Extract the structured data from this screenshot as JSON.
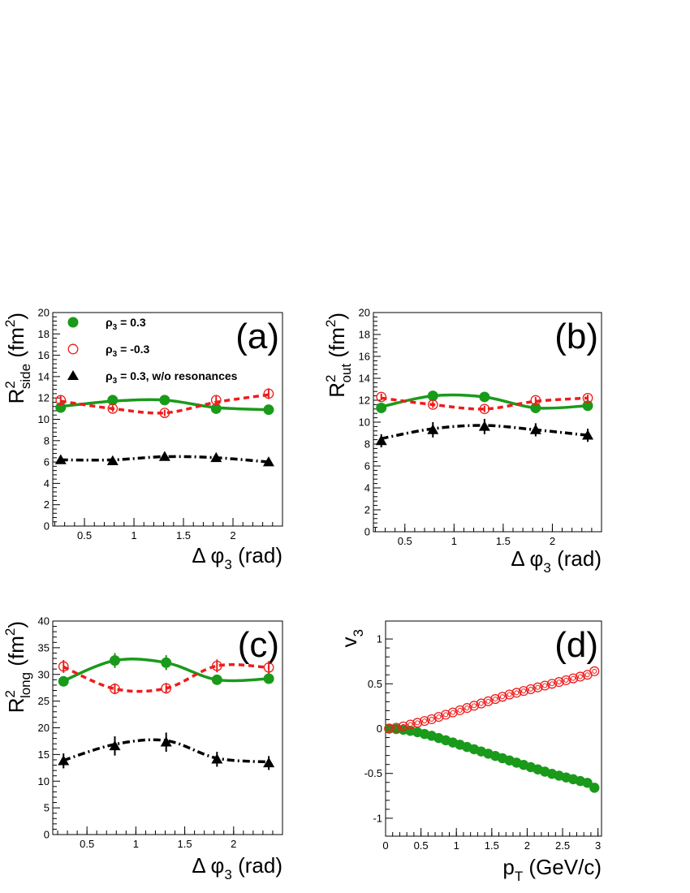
{
  "colors": {
    "series1": "#1a9a1a",
    "series2": "#ee1c1c",
    "series3": "#000000"
  },
  "legend": {
    "sym": "ρ",
    "sub": "3",
    "items": [
      {
        "rest": " = 0.3",
        "marker": "filled-circle",
        "color": "#1a9a1a"
      },
      {
        "rest": " = -0.3",
        "marker": "open-circle",
        "color": "#ee1c1c"
      },
      {
        "rest": " = 0.3, w/o resonances",
        "marker": "filled-triangle",
        "color": "#000000"
      }
    ]
  },
  "chart_data": [
    {
      "panel": "(a)",
      "type": "scatter",
      "xlim": [
        0.18,
        2.5
      ],
      "ylim": [
        0,
        20
      ],
      "xticks": [
        "0.5",
        "1",
        "1.5",
        "2"
      ],
      "yticks": [
        "0",
        "2",
        "4",
        "6",
        "8",
        "10",
        "12",
        "14",
        "16",
        "18",
        "20"
      ],
      "xlabel": {
        "main": "Δ φ",
        "sub": "3",
        "tail": " (rad)"
      },
      "ylabel": {
        "main": "R",
        "sup": "2",
        "sub": "side",
        "tail": " (fm",
        "tailsup": "2",
        "close": ")"
      },
      "series": [
        {
          "x": [
            0.26,
            0.785,
            1.31,
            1.83,
            2.36
          ],
          "y": [
            11.1,
            11.8,
            11.8,
            11.0,
            10.9
          ],
          "err": [
            0.3,
            0.3,
            0.3,
            0.3,
            0.3
          ],
          "curve": [
            11.2,
            11.7,
            11.8,
            11.1,
            10.9
          ]
        },
        {
          "x": [
            0.26,
            0.785,
            1.31,
            1.83,
            2.36
          ],
          "y": [
            11.8,
            11.0,
            10.6,
            11.8,
            12.4
          ],
          "err": [
            0.4,
            0.3,
            0.3,
            0.4,
            0.5
          ],
          "curve": [
            11.7,
            11.0,
            10.6,
            11.6,
            12.3
          ]
        },
        {
          "x": [
            0.26,
            0.785,
            1.31,
            1.83,
            2.36
          ],
          "y": [
            6.2,
            6.1,
            6.5,
            6.4,
            6.0
          ],
          "err": [
            0.2,
            0.2,
            0.2,
            0.2,
            0.2
          ],
          "curve": [
            6.2,
            6.2,
            6.5,
            6.4,
            6.0
          ]
        }
      ]
    },
    {
      "panel": "(b)",
      "type": "scatter",
      "xlim": [
        0.18,
        2.5
      ],
      "ylim": [
        0,
        20
      ],
      "xticks": [
        "0.5",
        "1",
        "1.5",
        "2"
      ],
      "yticks": [
        "0",
        "2",
        "4",
        "6",
        "8",
        "10",
        "12",
        "14",
        "16",
        "18",
        "20"
      ],
      "xlabel": {
        "main": "Δ φ",
        "sub": "3",
        "tail": " (rad)"
      },
      "ylabel": {
        "main": "R",
        "sup": "2",
        "sub": "out",
        "tail": " (fm",
        "tailsup": "2",
        "close": ")"
      },
      "series": [
        {
          "x": [
            0.26,
            0.785,
            1.31,
            1.83,
            2.36
          ],
          "y": [
            11.3,
            12.4,
            12.3,
            11.3,
            11.5
          ],
          "err": [
            0.3,
            0.3,
            0.3,
            0.3,
            0.3
          ],
          "curve": [
            11.4,
            12.4,
            12.3,
            11.3,
            11.5
          ]
        },
        {
          "x": [
            0.26,
            0.785,
            1.31,
            1.83,
            2.36
          ],
          "y": [
            12.3,
            11.6,
            11.2,
            12.0,
            12.2
          ],
          "err": [
            0.3,
            0.3,
            0.3,
            0.3,
            0.3
          ],
          "curve": [
            12.2,
            11.6,
            11.2,
            11.9,
            12.2
          ]
        },
        {
          "x": [
            0.26,
            0.785,
            1.31,
            1.83,
            2.36
          ],
          "y": [
            8.3,
            9.3,
            9.6,
            9.3,
            8.8
          ],
          "err": [
            0.6,
            0.7,
            0.7,
            0.6,
            0.6
          ],
          "curve": [
            8.5,
            9.4,
            9.7,
            9.3,
            8.8
          ]
        }
      ]
    },
    {
      "panel": "(c)",
      "type": "scatter",
      "xlim": [
        0.15,
        2.5
      ],
      "ylim": [
        0,
        40
      ],
      "xticks": [
        "0.5",
        "1",
        "1.5",
        "2"
      ],
      "yticks": [
        "0",
        "5",
        "10",
        "15",
        "20",
        "25",
        "30",
        "35",
        "40"
      ],
      "xlabel": {
        "main": "Δ φ",
        "sub": "3",
        "tail": " (rad)"
      },
      "ylabel": {
        "main": "R",
        "sup": "2",
        "sub": "long",
        "tail": " (fm",
        "tailsup": "2",
        "close": ")"
      },
      "series": [
        {
          "x": [
            0.26,
            0.785,
            1.31,
            1.83,
            2.36
          ],
          "y": [
            28.7,
            32.6,
            32.2,
            29.0,
            29.2
          ],
          "err": [
            0.8,
            1.4,
            1.4,
            0.8,
            0.8
          ],
          "curve": [
            28.8,
            32.6,
            32.2,
            29.0,
            29.2
          ]
        },
        {
          "x": [
            0.26,
            0.785,
            1.31,
            1.83,
            2.36
          ],
          "y": [
            31.5,
            27.3,
            27.4,
            31.6,
            31.3
          ],
          "err": [
            1.2,
            1.0,
            1.0,
            1.2,
            1.2
          ],
          "curve": [
            31.4,
            27.3,
            27.4,
            31.6,
            31.3
          ]
        },
        {
          "x": [
            0.26,
            0.785,
            1.31,
            1.83,
            2.36
          ],
          "y": [
            13.8,
            16.6,
            17.3,
            14.1,
            13.4
          ],
          "err": [
            1.4,
            1.8,
            1.8,
            1.4,
            1.3
          ],
          "curve": [
            13.9,
            16.9,
            17.6,
            14.3,
            13.6
          ]
        }
      ]
    },
    {
      "panel": "(d)",
      "type": "scatter",
      "xlim": [
        0,
        3.05
      ],
      "ylim": [
        -1.2,
        1.2
      ],
      "xticks": [
        "0",
        "0.5",
        "1",
        "1.5",
        "2",
        "2.5",
        "3"
      ],
      "yticks": [
        "-1",
        "-0.5",
        "0",
        "0.5",
        "1"
      ],
      "xlabel": {
        "main": "p",
        "sub": "T",
        "tail": " (GeV/c)"
      },
      "ylabel": {
        "main": "v",
        "sub": "3"
      },
      "series": [
        {
          "x": [
            0.05,
            0.15,
            0.25,
            0.35,
            0.45,
            0.55,
            0.65,
            0.75,
            0.85,
            0.95,
            1.05,
            1.15,
            1.25,
            1.35,
            1.45,
            1.55,
            1.65,
            1.75,
            1.85,
            1.95,
            2.05,
            2.15,
            2.25,
            2.35,
            2.45,
            2.55,
            2.65,
            2.75,
            2.85,
            2.95
          ],
          "y": [
            0.0,
            -0.005,
            -0.012,
            -0.025,
            -0.04,
            -0.06,
            -0.08,
            -0.105,
            -0.13,
            -0.155,
            -0.18,
            -0.205,
            -0.23,
            -0.255,
            -0.28,
            -0.305,
            -0.33,
            -0.355,
            -0.38,
            -0.405,
            -0.43,
            -0.455,
            -0.48,
            -0.505,
            -0.525,
            -0.545,
            -0.565,
            -0.585,
            -0.605,
            -0.66
          ]
        },
        {
          "x": [
            0.05,
            0.15,
            0.25,
            0.35,
            0.45,
            0.55,
            0.65,
            0.75,
            0.85,
            0.95,
            1.05,
            1.15,
            1.25,
            1.35,
            1.45,
            1.55,
            1.65,
            1.75,
            1.85,
            1.95,
            2.05,
            2.15,
            2.25,
            2.35,
            2.45,
            2.55,
            2.65,
            2.75,
            2.85,
            2.95
          ],
          "y": [
            0.0,
            0.01,
            0.025,
            0.045,
            0.065,
            0.085,
            0.105,
            0.13,
            0.155,
            0.18,
            0.205,
            0.23,
            0.255,
            0.28,
            0.305,
            0.33,
            0.355,
            0.38,
            0.4,
            0.42,
            0.44,
            0.46,
            0.48,
            0.5,
            0.52,
            0.54,
            0.56,
            0.58,
            0.6,
            0.64
          ]
        }
      ]
    }
  ]
}
